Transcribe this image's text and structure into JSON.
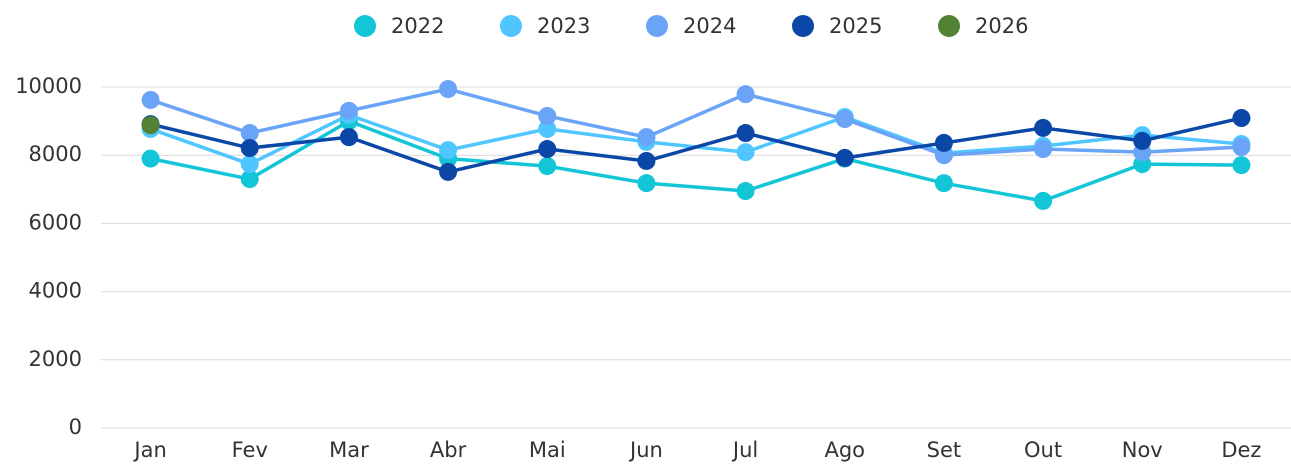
{
  "chart_data": {
    "type": "line",
    "categories": [
      "Jan",
      "Fev",
      "Mar",
      "Abr",
      "Mai",
      "Jun",
      "Jul",
      "Ago",
      "Set",
      "Out",
      "Nov",
      "Dez"
    ],
    "series": [
      {
        "name": "2022",
        "color": "#12c6d8",
        "values": [
          7900,
          7300,
          9000,
          7900,
          7680,
          7180,
          6950,
          7900,
          7180,
          6660,
          7740,
          7710
        ]
      },
      {
        "name": "2023",
        "color": "#4fc6ff",
        "values": [
          8770,
          7740,
          9180,
          8150,
          8770,
          8390,
          8090,
          9120,
          8060,
          8270,
          8590,
          8330
        ]
      },
      {
        "name": "2024",
        "color": "#6aa4f7",
        "values": [
          9620,
          8650,
          9300,
          9940,
          9150,
          8530,
          9790,
          9060,
          8000,
          8180,
          8090,
          8240
        ]
      },
      {
        "name": "2025",
        "color": "#0b47a6",
        "values": [
          8910,
          8210,
          8530,
          7510,
          8180,
          7830,
          8650,
          7920,
          8360,
          8800,
          8420,
          9090
        ]
      },
      {
        "name": "2026",
        "color": "#548235",
        "values": [
          8880,
          null,
          null,
          null,
          null,
          null,
          null,
          null,
          null,
          null,
          null,
          null
        ]
      }
    ],
    "ylim": [
      0,
      10000
    ],
    "yticks": [
      0,
      2000,
      4000,
      6000,
      8000,
      10000
    ],
    "grid": true,
    "legend": "top"
  }
}
